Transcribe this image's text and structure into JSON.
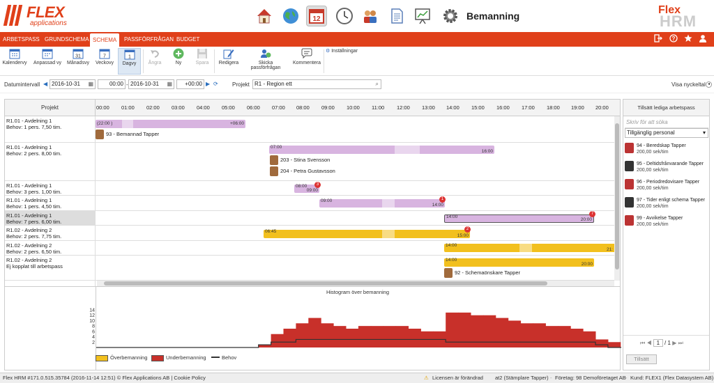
{
  "app": {
    "logo_main": "FLEX",
    "logo_sub": "applications",
    "module_title": "Bemanning",
    "brand_top": "Flex",
    "brand_bottom": "HRM"
  },
  "nav": {
    "tabs": [
      "ARBETSPASS",
      "GRUNDSCHEMA",
      "SCHEMA",
      "PASSFÖRFRÅGAN",
      "BUDGET"
    ],
    "active": "SCHEMA"
  },
  "toolbar": {
    "items": [
      {
        "label": "Kalendervy",
        "icon": "calendar-icon"
      },
      {
        "label": "Anpassad vy",
        "icon": "calendar-icon"
      },
      {
        "label": "Månadsvy",
        "icon": "calendar-31-icon",
        "num": "31"
      },
      {
        "label": "Veckovy",
        "icon": "calendar-7-icon",
        "num": "7"
      },
      {
        "label": "Dagvy",
        "icon": "calendar-1-icon",
        "num": "1"
      },
      {
        "label": "Ångra",
        "icon": "undo-icon"
      },
      {
        "label": "Ny",
        "icon": "plus-icon"
      },
      {
        "label": "Spara",
        "icon": "save-icon"
      },
      {
        "label": "Redigera",
        "icon": "edit-icon"
      },
      {
        "label": "Skicka passförfrågan",
        "icon": "send-request-icon"
      },
      {
        "label": "Kommentera",
        "icon": "comment-icon"
      }
    ],
    "settings": "Inställningar"
  },
  "filter": {
    "date_label": "Datumintervall",
    "date_from": "2016-10-31",
    "time_from": "00:00",
    "sep": "-",
    "date_to": "2016-10-31",
    "time_offset": "+00:00",
    "project_label": "Projekt",
    "project": "R1 - Region ett",
    "show_key": "Visa nyckeltal"
  },
  "grid": {
    "project_header": "Projekt",
    "hours": [
      "00:00",
      "01:00",
      "02:00",
      "03:00",
      "04:00",
      "05:00",
      "06:00",
      "07:00",
      "08:00",
      "09:00",
      "10:00",
      "11:00",
      "12:00",
      "13:00",
      "14:00",
      "15:00",
      "16:00",
      "17:00",
      "18:00",
      "19:00",
      "20:00"
    ],
    "rows": [
      {
        "name": "R1.01 - Avdelning 1",
        "need": "Behov: 1 pers. 7,50 tim.",
        "bar_left": "(22:00 )",
        "bar_right": "+06:00",
        "person": "93 - Bemannad Tapper"
      },
      {
        "name": "R1.01 - Avdelning 1",
        "need": "Behov: 2 pers. 8,00 tim.",
        "bar_left": "07:00",
        "bar_right": "16:00",
        "person1": "203 - Stina Svensson",
        "person2": "204 - Petra Gustavsson"
      },
      {
        "name": "R1.01 - Avdelning 1",
        "need": "Behov: 3 pers. 1,00 tim.",
        "bar_left": "08:00",
        "bar_right": "09:00",
        "badge": "3"
      },
      {
        "name": "R1.01 - Avdelning 1",
        "need": "Behov: 1 pers. 4,50 tim.",
        "bar_left": "09:00",
        "bar_right": "14:00",
        "badge": "1"
      },
      {
        "name": "R1.01 - Avdelning 1",
        "need": "Behov: 7 pers. 6,00 tim.",
        "bar_left": "14:00",
        "bar_right": "20:00",
        "badge": "7"
      },
      {
        "name": "R1.02 - Avdelning 2",
        "need": "Behov: 2 pers. 7,75 tim.",
        "bar_left": "06:45",
        "bar_right": "15:00",
        "badge": "2"
      },
      {
        "name": "R1.02 - Avdelning 2",
        "need": "Behov: 2 pers. 6,50 tim.",
        "bar_left": "14:00",
        "bar_right": "21:"
      },
      {
        "name": "R1.02 - Avdelning 2",
        "need": "Ej kopplat till arbetspass",
        "bar_left": "14:00",
        "bar_right": "20:00",
        "person": "92 - Schemaönskare Tapper"
      }
    ]
  },
  "histogram": {
    "title": "Histogram över bemanning",
    "yticks": [
      "14",
      "12",
      "10",
      "8",
      "6",
      "4",
      "2"
    ],
    "legend": [
      "Överbemanning",
      "Underbemanning",
      "Behov"
    ],
    "colors": {
      "over": "#f2c01e",
      "under": "#c8302a",
      "need": "#333333"
    }
  },
  "chart_data": {
    "type": "area",
    "title": "Histogram över bemanning",
    "ylim": [
      0,
      14
    ],
    "x": [
      "00:00",
      "00:30",
      "01:00",
      "01:30",
      "02:00",
      "02:30",
      "03:00",
      "03:30",
      "04:00",
      "04:30",
      "05:00",
      "05:30",
      "06:00",
      "06:30",
      "07:00",
      "07:30",
      "08:00",
      "08:30",
      "09:00",
      "09:30",
      "10:00",
      "10:30",
      "11:00",
      "11:30",
      "12:00",
      "12:30",
      "13:00",
      "13:30",
      "14:00",
      "14:30",
      "15:00",
      "15:30",
      "16:00",
      "16:30",
      "17:00",
      "17:30",
      "18:00",
      "18:30",
      "19:00",
      "19:30",
      "20:00",
      "20:30",
      "21:00"
    ],
    "series": [
      {
        "name": "Underbemanning",
        "values": [
          0,
          0,
          0,
          0,
          0,
          0,
          0,
          0,
          0,
          0,
          0,
          0,
          0,
          1,
          5,
          7,
          9,
          11,
          9,
          8,
          7,
          8,
          8,
          8,
          8,
          7,
          6,
          6,
          13,
          13,
          12,
          12,
          11,
          10,
          9,
          9,
          8,
          8,
          7,
          6,
          3,
          2,
          0
        ]
      },
      {
        "name": "Behov",
        "values": [
          0,
          0,
          0,
          0,
          0,
          0,
          0,
          0,
          0,
          0,
          0,
          0,
          0,
          1,
          2,
          2,
          3,
          3,
          3,
          3,
          3,
          3,
          3,
          3,
          3,
          3,
          3,
          3,
          2,
          2,
          2,
          2,
          2,
          2,
          2,
          2,
          2,
          2,
          2,
          2,
          1,
          0,
          0
        ]
      }
    ]
  },
  "side": {
    "title": "Tillsätt lediga arbetspass",
    "search_placeholder": "Skriv för att söka",
    "filter": "Tillgänglig personal",
    "people": [
      {
        "name": "94 - Beredskap Tapper",
        "rate": "200,00 sek/tim",
        "dark": false
      },
      {
        "name": "95 - Deltidsfrånvarande Tapper",
        "rate": "200,00 sek/tim",
        "dark": true
      },
      {
        "name": "96 - Periodredovisare Tapper",
        "rate": "200,00 sek/tim",
        "dark": false
      },
      {
        "name": "97 - Tider enligt schema Tapper",
        "rate": "200,00 sek/tim",
        "dark": true
      },
      {
        "name": "99 - Avvikelse Tapper",
        "rate": "200,00 sek/tim",
        "dark": false
      }
    ],
    "page": "1",
    "page_total": "/ 1",
    "assign_button": "Tillsätt"
  },
  "footer": {
    "left": "Flex HRM #171.0.515.35784 (2016-11-14 12:51) © Flex Applications AB | Cookie Policy",
    "license": "Licensen är förändrad",
    "user": "at2 (Stämplare Tapper)",
    "company": "Företag: 98 Demoföretaget AB",
    "customer": "Kund: FLEX1 (Flex Datasystem AB)"
  }
}
